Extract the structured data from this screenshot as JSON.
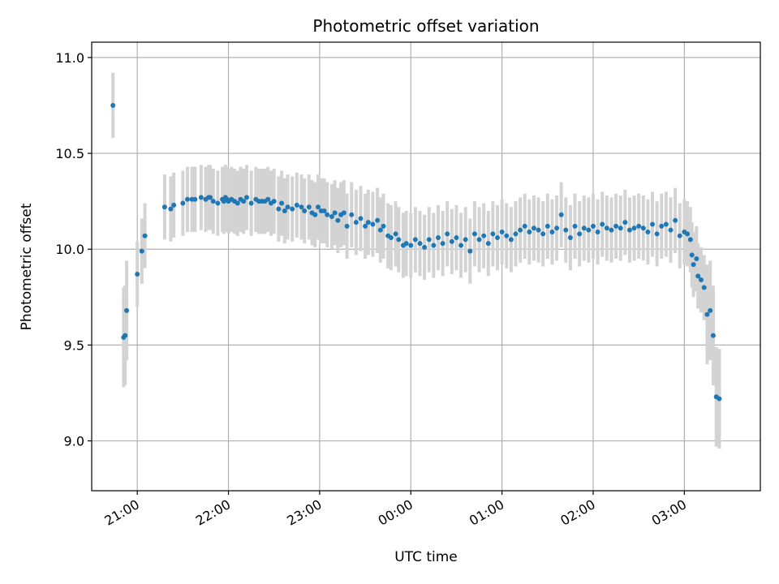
{
  "chart_data": {
    "type": "scatter",
    "title": "Photometric offset variation",
    "xlabel": "UTC time",
    "ylabel": "Photometric offset",
    "x_axis_kind": "time",
    "x_start_label": "20:30",
    "x_end_label": "03:50",
    "xticks": [
      "21:00",
      "22:00",
      "23:00",
      "00:00",
      "01:00",
      "02:00",
      "03:00"
    ],
    "ylim": [
      8.74,
      11.08
    ],
    "yticks": [
      "9.0",
      "9.5",
      "10.0",
      "10.5",
      "11.0"
    ],
    "grid": true,
    "marker_color": "#1f77b4",
    "errorbar_color": "#d3d3d3",
    "series": [
      {
        "x": [
          "20:44",
          "20:51",
          "20:52",
          "20:53",
          "21:00",
          "21:03",
          "21:05",
          "21:18",
          "21:22",
          "21:24",
          "21:30",
          "21:33",
          "21:36",
          "21:38",
          "21:42",
          "21:45",
          "21:47",
          "21:48",
          "21:50",
          "21:53",
          "21:56",
          "21:57",
          "21:58",
          "21:59",
          "22:00",
          "22:02",
          "22:04",
          "22:06",
          "22:08",
          "22:10",
          "22:12",
          "22:15",
          "22:18",
          "22:20",
          "22:22",
          "22:24",
          "22:26",
          "22:28",
          "22:30",
          "22:33",
          "22:35",
          "22:37",
          "22:39",
          "22:42",
          "22:45",
          "22:48",
          "22:50",
          "22:53",
          "22:55",
          "22:57",
          "22:59",
          "23:01",
          "23:03",
          "23:05",
          "23:08",
          "23:10",
          "23:12",
          "23:14",
          "23:16",
          "23:18",
          "23:21",
          "23:24",
          "23:27",
          "23:30",
          "23:32",
          "23:35",
          "23:38",
          "23:40",
          "23:42",
          "23:45",
          "23:47",
          "23:50",
          "23:52",
          "23:55",
          "23:57",
          "00:00",
          "00:03",
          "00:06",
          "00:09",
          "00:12",
          "00:15",
          "00:18",
          "00:21",
          "00:24",
          "00:27",
          "00:30",
          "00:33",
          "00:36",
          "00:39",
          "00:42",
          "00:45",
          "00:48",
          "00:51",
          "00:54",
          "00:57",
          "01:00",
          "01:03",
          "01:06",
          "01:09",
          "01:12",
          "01:15",
          "01:18",
          "01:21",
          "01:24",
          "01:27",
          "01:30",
          "01:33",
          "01:36",
          "01:39",
          "01:42",
          "01:45",
          "01:48",
          "01:51",
          "01:54",
          "01:57",
          "02:00",
          "02:03",
          "02:06",
          "02:09",
          "02:12",
          "02:15",
          "02:18",
          "02:21",
          "02:24",
          "02:27",
          "02:30",
          "02:33",
          "02:36",
          "02:39",
          "02:42",
          "02:45",
          "02:48",
          "02:51",
          "02:54",
          "02:57",
          "03:00",
          "03:02",
          "03:04",
          "03:05",
          "03:06",
          "03:08",
          "03:09",
          "03:11",
          "03:13",
          "03:15",
          "03:17",
          "03:19",
          "03:21",
          "03:23"
        ],
        "y": [
          10.75,
          9.54,
          9.55,
          9.68,
          9.87,
          9.99,
          10.07,
          10.22,
          10.21,
          10.23,
          10.24,
          10.26,
          10.26,
          10.26,
          10.27,
          10.26,
          10.27,
          10.27,
          10.25,
          10.24,
          10.26,
          10.25,
          10.27,
          10.26,
          10.25,
          10.26,
          10.25,
          10.24,
          10.26,
          10.25,
          10.27,
          10.24,
          10.26,
          10.25,
          10.25,
          10.25,
          10.26,
          10.24,
          10.25,
          10.21,
          10.24,
          10.2,
          10.22,
          10.21,
          10.23,
          10.22,
          10.2,
          10.22,
          10.19,
          10.18,
          10.22,
          10.2,
          10.2,
          10.18,
          10.17,
          10.19,
          10.15,
          10.18,
          10.19,
          10.12,
          10.18,
          10.14,
          10.16,
          10.12,
          10.14,
          10.13,
          10.15,
          10.1,
          10.12,
          10.07,
          10.06,
          10.08,
          10.05,
          10.02,
          10.03,
          10.02,
          10.05,
          10.03,
          10.01,
          10.05,
          10.02,
          10.06,
          10.03,
          10.08,
          10.04,
          10.06,
          10.02,
          10.05,
          9.99,
          10.08,
          10.05,
          10.07,
          10.03,
          10.08,
          10.06,
          10.09,
          10.07,
          10.05,
          10.08,
          10.1,
          10.12,
          10.09,
          10.11,
          10.1,
          10.08,
          10.12,
          10.09,
          10.11,
          10.18,
          10.1,
          10.06,
          10.12,
          10.08,
          10.11,
          10.1,
          10.12,
          10.09,
          10.13,
          10.11,
          10.1,
          10.12,
          10.11,
          10.14,
          10.1,
          10.11,
          10.12,
          10.11,
          10.09,
          10.13,
          10.08,
          10.12,
          10.13,
          10.1,
          10.15,
          10.07,
          10.09,
          10.08,
          10.05,
          9.97,
          9.92,
          9.95,
          9.86,
          9.84,
          9.8,
          9.66,
          9.68,
          9.55,
          9.23,
          9.22
        ]
      }
    ]
  }
}
